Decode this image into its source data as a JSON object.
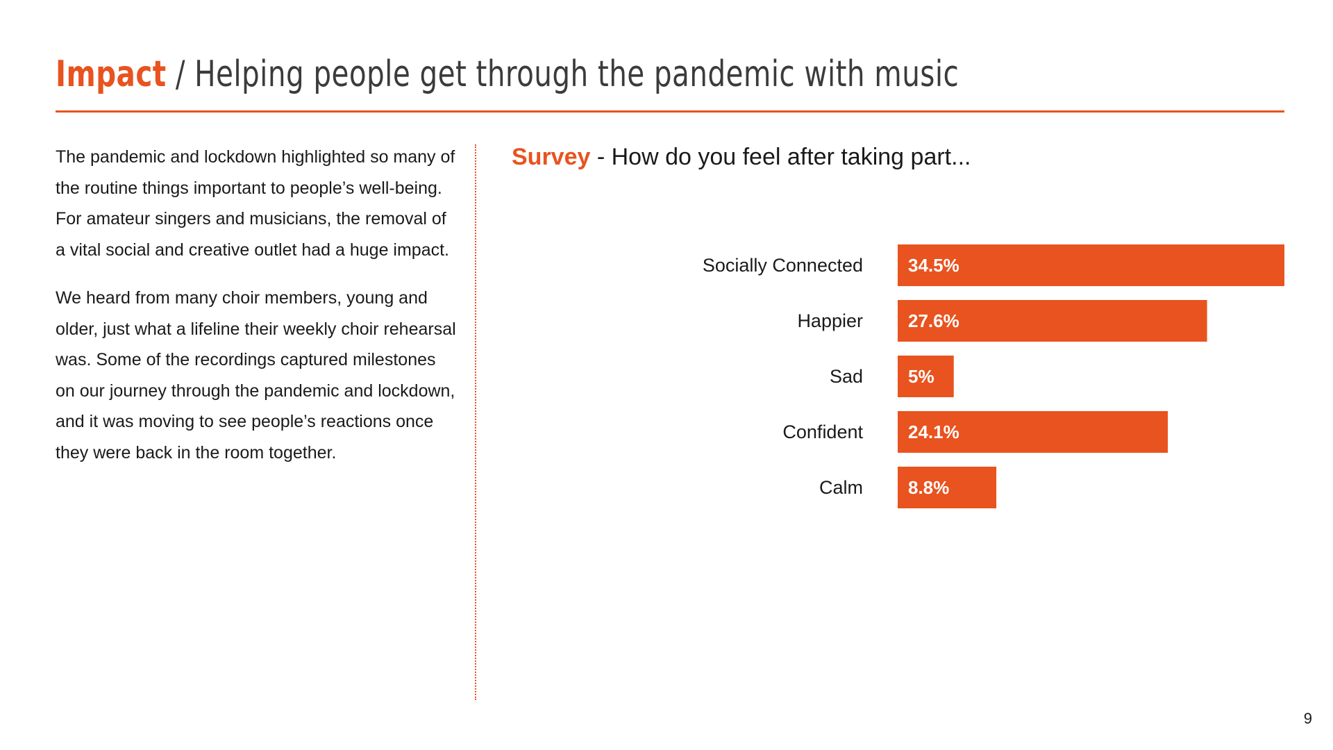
{
  "header": {
    "title_accent": "Impact",
    "title_separator": " / ",
    "title_rest": "Helping people get through the pandemic with music"
  },
  "body_text": {
    "paragraph_1": "The pandemic and lockdown highlighted so many of the routine things important to people’s well-being. For amateur singers and musicians, the removal of a vital social and creative outlet had a huge impact.",
    "paragraph_2": "We heard from many choir members, young and older, just what a lifeline their weekly choir rehearsal was. Some of the recordings captured milestones on our journey through the pandemic and lockdown, and it was moving to see people’s reactions once they were back in the room together."
  },
  "survey": {
    "title_accent": "Survey",
    "title_rest": " - How do you feel after taking part..."
  },
  "chart_data": {
    "type": "bar",
    "orientation": "horizontal",
    "categories": [
      "Socially Connected",
      "Happier",
      "Sad",
      "Confident",
      "Calm"
    ],
    "values": [
      34.5,
      27.6,
      5,
      24.1,
      8.8
    ],
    "value_labels": [
      "34.5%",
      "27.6%",
      "5%",
      "24.1%",
      "8.8%"
    ],
    "xlim": [
      0,
      34.5
    ],
    "grid": false,
    "legend": "none",
    "bar_color": "#e8531f",
    "label_color": "#ffffff"
  },
  "page_number": "9",
  "colors": {
    "accent": "#e8531f",
    "text": "#1a1a1a",
    "title_gray": "#3b3b3b"
  }
}
